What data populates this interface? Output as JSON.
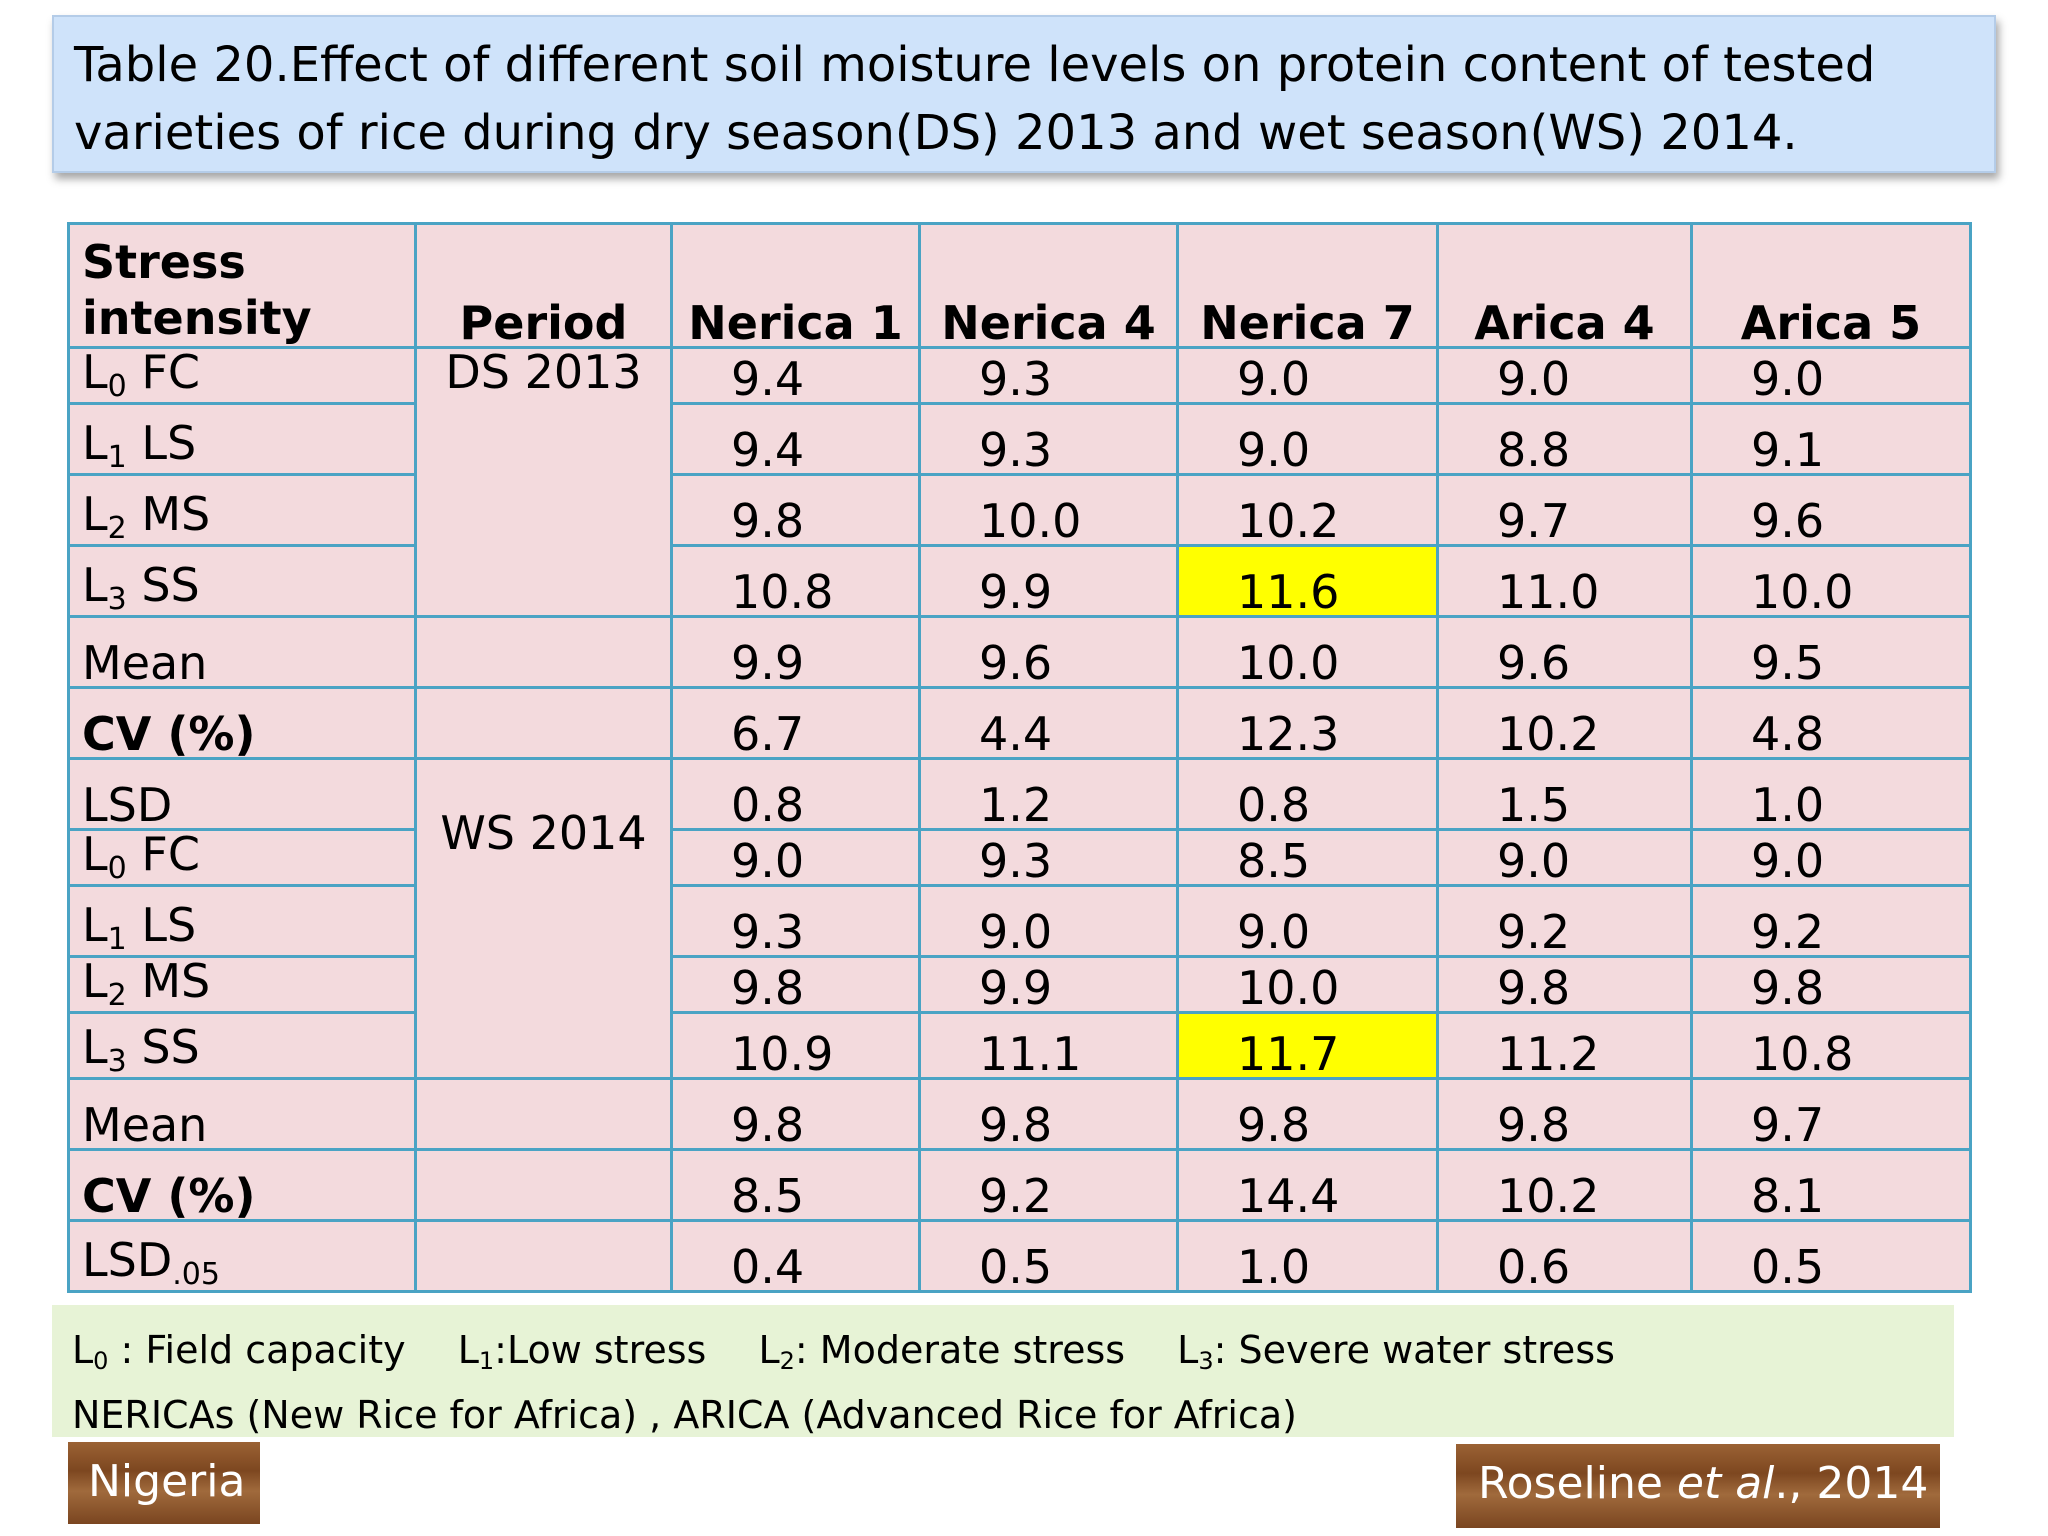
{
  "title": {
    "line1": "Table 20.Effect of different soil moisture levels on  protein content  of  tested",
    "line2": "varieties of rice during  dry season(DS) 2013 and wet season(WS) 2014."
  },
  "table": {
    "headers": {
      "stress": "Stress intensity",
      "period": "Period",
      "cols": [
        "Nerica 1",
        "Nerica 4",
        "Nerica 7",
        "Arica 4",
        "Arica 5"
      ]
    },
    "periods": {
      "ds": "DS 2013",
      "ws": "WS 2014"
    },
    "rows": [
      {
        "label": "L",
        "sub": "0",
        "suffix": " FC",
        "values": [
          "9.4",
          "9.3",
          "9.0",
          "9.0",
          "9.0"
        ]
      },
      {
        "label": "L",
        "sub": "1",
        "suffix": " LS",
        "values": [
          "9.4",
          "9.3",
          "9.0",
          "8.8",
          "9.1"
        ]
      },
      {
        "label": "L",
        "sub": "2",
        "suffix": " MS",
        "values": [
          "9.8",
          "10.0",
          "10.2",
          "9.7",
          "9.6"
        ]
      },
      {
        "label": "L",
        "sub": "3",
        "suffix": " SS",
        "values": [
          "10.8",
          "9.9",
          "11.6",
          "11.0",
          "10.0"
        ]
      },
      {
        "label": "Mean",
        "sub": "",
        "suffix": "",
        "values": [
          "9.9",
          "9.6",
          "10.0",
          "9.6",
          "9.5"
        ]
      },
      {
        "label": "CV (%)",
        "sub": "",
        "suffix": "",
        "values": [
          "6.7",
          "4.4",
          "12.3",
          "10.2",
          "4.8"
        ]
      },
      {
        "label": "LSD",
        "sub": "",
        "suffix": "",
        "values": [
          "0.8",
          "1.2",
          "0.8",
          "1.5",
          "1.0"
        ]
      },
      {
        "label": "L",
        "sub": "0",
        "suffix": " FC",
        "values": [
          "9.0",
          "9.3",
          "8.5",
          "9.0",
          "9.0"
        ]
      },
      {
        "label": "L",
        "sub": "1",
        "suffix": " LS",
        "values": [
          "9.3",
          "9.0",
          "9.0",
          "9.2",
          "9.2"
        ]
      },
      {
        "label": "L",
        "sub": "2",
        "suffix": " MS",
        "values": [
          "9.8",
          "9.9",
          "10.0",
          "9.8",
          "9.8"
        ]
      },
      {
        "label": "L",
        "sub": "3",
        "suffix": " SS",
        "values": [
          "10.9",
          "11.1",
          "11.7",
          "11.2",
          "10.8"
        ]
      },
      {
        "label": "Mean",
        "sub": "",
        "suffix": "",
        "values": [
          "9.8",
          "9.8",
          "9.8",
          "9.8",
          "9.7"
        ]
      },
      {
        "label": "CV (%)",
        "sub": "",
        "suffix": "",
        "values": [
          "8.5",
          "9.2",
          "14.4",
          "10.2",
          "8.1"
        ]
      },
      {
        "label": "LSD",
        "sub": ".05",
        "suffix": "",
        "values": [
          "0.4",
          "0.5",
          "1.0",
          "0.6",
          "0.5"
        ]
      }
    ],
    "highlight_color": "#ffff00"
  },
  "legend": {
    "l0": {
      "label": "L",
      "sub": "0",
      "text": " : Field  capacity"
    },
    "l1": {
      "label": "L",
      "sub": "1",
      "text": ":Low stress"
    },
    "l2": {
      "label": "L",
      "sub": "2",
      "text": ": Moderate stress"
    },
    "l3": {
      "label": "L",
      "sub": "3",
      "text": ": Severe water stress"
    },
    "line2": "NERICAs (New Rice for Africa)  , ARICA (Advanced Rice for Africa)"
  },
  "footer": {
    "country": "Nigeria",
    "citation_author": "Roseline ",
    "citation_etal": "et al",
    "citation_year": "., 2014"
  }
}
